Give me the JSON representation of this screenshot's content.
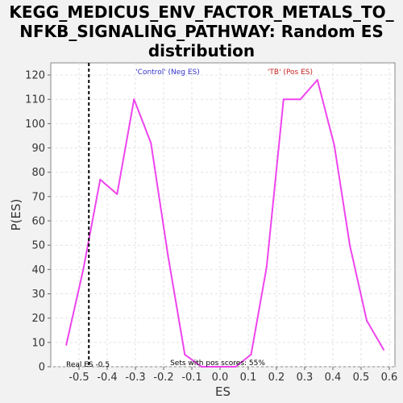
{
  "chart_data": {
    "type": "line",
    "title_lines": [
      "KEGG_MEDICUS_ENV_FACTOR_METALS_TO_",
      "NFKB_SIGNALING_PATHWAY: Random ES",
      "distribution"
    ],
    "xlabel": "ES",
    "ylabel": "P(ES)",
    "xlim": [
      -0.6,
      0.62
    ],
    "ylim": [
      0,
      125
    ],
    "xticks": [
      -0.5,
      -0.4,
      -0.3,
      -0.2,
      -0.1,
      0.0,
      0.1,
      0.2,
      0.3,
      0.4,
      0.5,
      0.6
    ],
    "xtick_labels": [
      "-0.5",
      "-0.4",
      "-0.3",
      "-0.2",
      "-0.1",
      "0.0",
      "0.1",
      "0.2",
      "0.3",
      "0.4",
      "0.5",
      "0.6"
    ],
    "yticks": [
      0,
      10,
      20,
      30,
      40,
      50,
      60,
      70,
      80,
      90,
      100,
      110,
      120
    ],
    "ytick_labels": [
      "0",
      "10",
      "20",
      "30",
      "40",
      "50",
      "60",
      "70",
      "80",
      "90",
      "100",
      "110",
      "120"
    ],
    "grid": true,
    "series": [
      {
        "color": "#ee44ee",
        "x": [
          -0.545,
          -0.485,
          -0.425,
          -0.365,
          -0.305,
          -0.245,
          -0.185,
          -0.125,
          -0.065,
          -0.005,
          0.055,
          0.11,
          0.165,
          0.225,
          0.285,
          0.345,
          0.405,
          0.46,
          0.52,
          0.58
        ],
        "y": [
          9,
          40,
          77,
          71,
          110,
          92,
          46,
          5,
          0,
          0,
          0,
          5,
          41,
          110,
          110,
          118,
          91,
          50,
          19,
          7
        ]
      }
    ],
    "real_es": {
      "x": -0.465,
      "label": "Real ES -0.5"
    },
    "annotations": {
      "neg_label": "'Control' (Neg ES)",
      "neg_color": "#3333cc",
      "pos_label": "'TB' (Pos ES)",
      "pos_color": "#cc2222",
      "sets_text": "Sets with pos scores: 55%"
    }
  }
}
